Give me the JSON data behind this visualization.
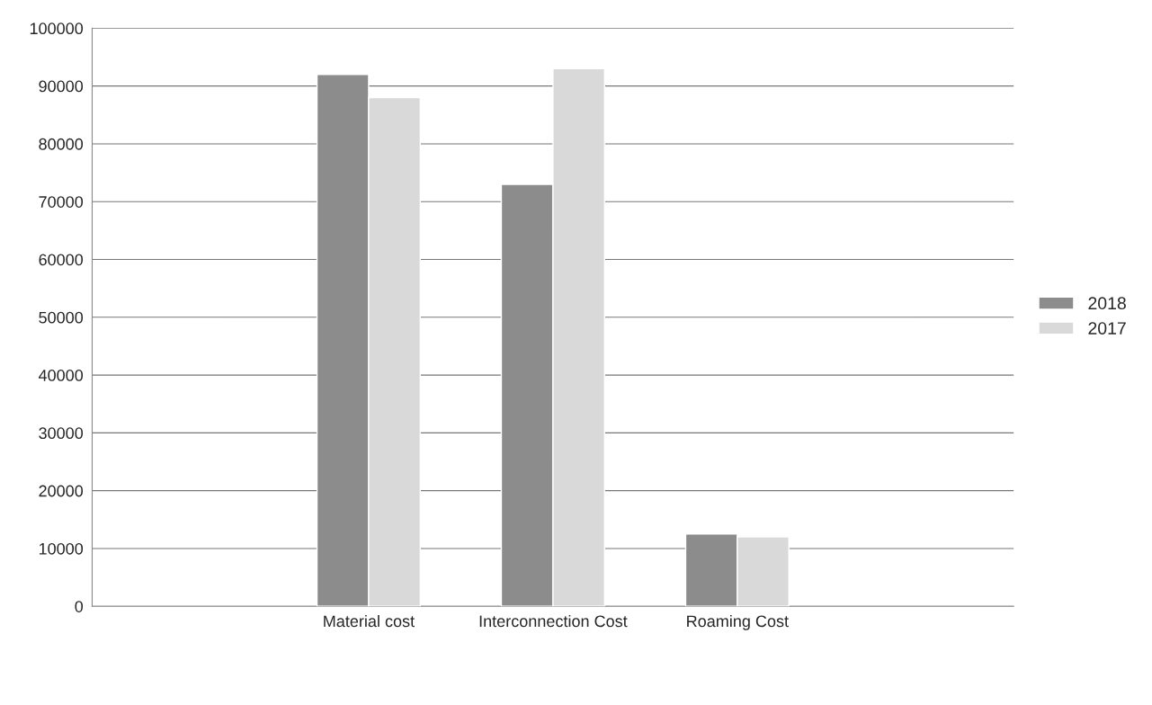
{
  "chart_data": {
    "type": "bar",
    "categories": [
      null,
      "Material cost",
      "Interconnection Cost",
      "Roaming Cost",
      null
    ],
    "series": [
      {
        "name": "2018",
        "color": "#8c8c8c",
        "values": [
          null,
          92000,
          73000,
          12500,
          null
        ]
      },
      {
        "name": "2017",
        "color": "#d9d9d9",
        "values": [
          null,
          88000,
          93000,
          12000,
          null
        ]
      }
    ],
    "ylim": [
      0,
      100000
    ],
    "yticks": [
      0,
      10000,
      20000,
      30000,
      40000,
      50000,
      60000,
      70000,
      80000,
      90000,
      100000
    ],
    "grid": "y",
    "legend": "right"
  }
}
